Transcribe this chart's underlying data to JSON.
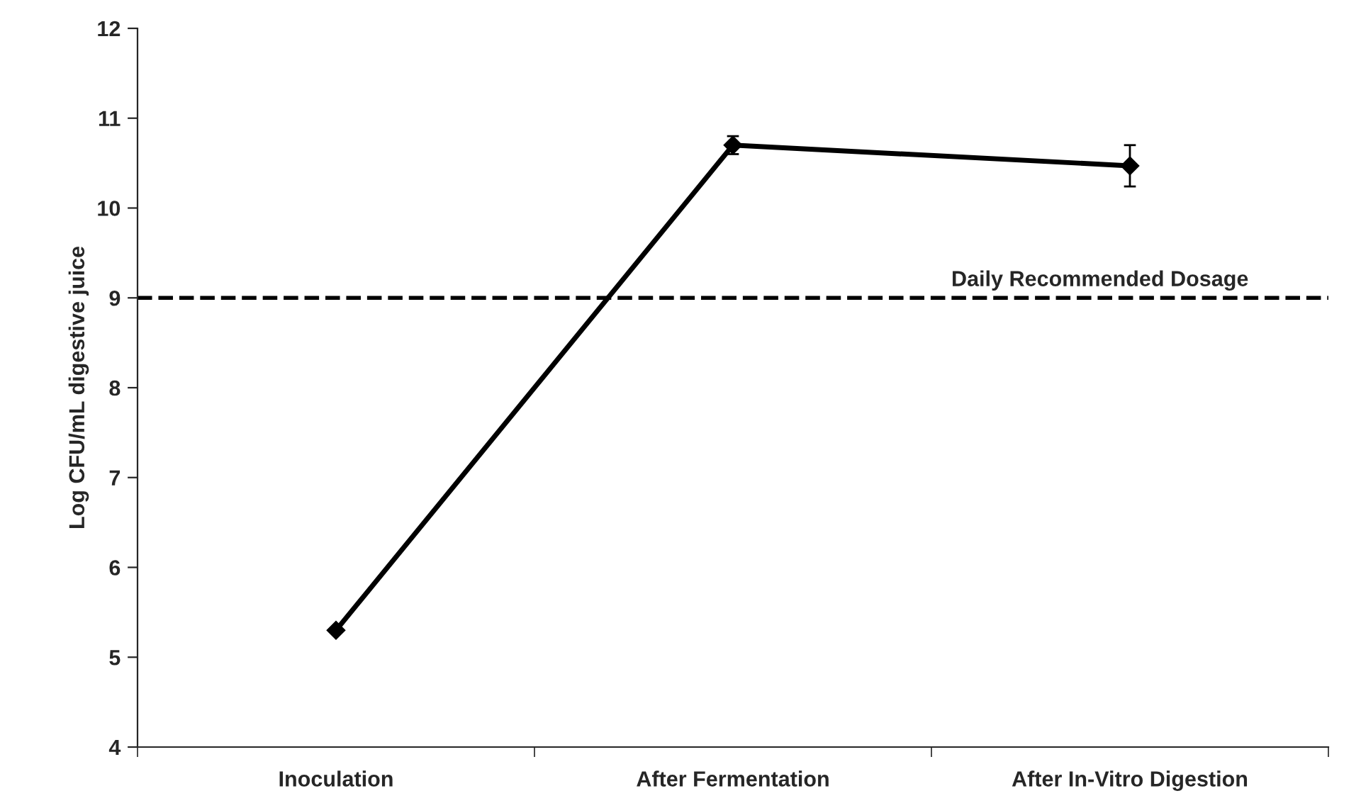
{
  "chart_data": {
    "type": "line",
    "ylabel": "Log CFU/mL digestive juice",
    "categories": [
      "Inoculation",
      "After Fermentation",
      "After In-Vitro Digestion"
    ],
    "series": [
      {
        "color": "#000000",
        "values": [
          5.3,
          10.7,
          10.47
        ],
        "errors": [
          null,
          0.1,
          0.23
        ]
      }
    ],
    "ylim": [
      4,
      12
    ],
    "yticks": [
      4,
      5,
      6,
      7,
      8,
      9,
      10,
      11,
      12
    ],
    "marker": "diamond",
    "line_style": "solid",
    "ref_lines": [
      {
        "axis": "y",
        "value": 9,
        "label": "Daily Recommended Dosage",
        "color": "#000000",
        "line_style": "dashed"
      }
    ],
    "grid": false
  }
}
